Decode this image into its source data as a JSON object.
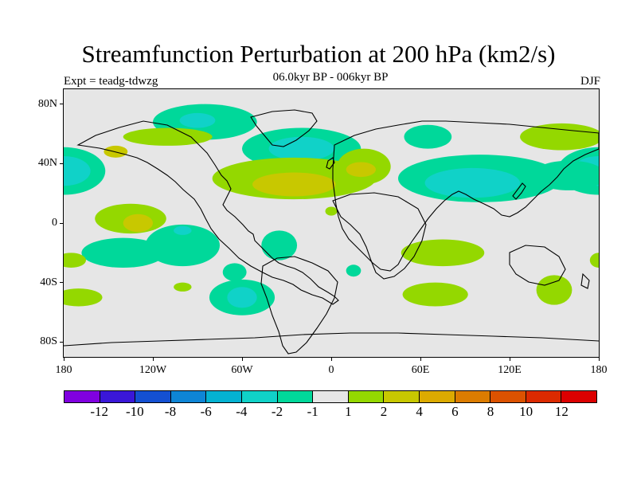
{
  "header": {
    "title": "Streamfunction Perturbation at 200 hPa (km2/s)",
    "subtitle": "06.0kyr BP - 006kyr BP",
    "experiment": "Expt = teadg-tdwzg",
    "season": "DJF"
  },
  "axes": {
    "lon_ticks": [
      "180",
      "120W",
      "60W",
      "0",
      "60E",
      "120E",
      "180"
    ],
    "lat_ticks": [
      "80N",
      "40N",
      "0",
      "40S",
      "80S"
    ]
  },
  "colorbar": {
    "colors": [
      "#8000e0",
      "#3a17d8",
      "#1450d2",
      "#0e85d6",
      "#04b2d2",
      "#10d2c8",
      "#00d89a",
      "#e6e6e6",
      "#94d800",
      "#c8c800",
      "#dcaa00",
      "#dc7c00",
      "#dc5200",
      "#dc2a00",
      "#dc0000"
    ],
    "labels": [
      "-12",
      "-10",
      "-8",
      "-6",
      "-4",
      "-2",
      "-1",
      "1",
      "2",
      "4",
      "6",
      "8",
      "10",
      "12"
    ]
  },
  "chart_data": {
    "type": "heatmap",
    "title": "Streamfunction Perturbation at 200 hPa (km2/s)",
    "subtitle": "06.0kyr BP - 006kyr BP",
    "field_colors": {
      "neg1": "#00d89a",
      "neg2": "#10d2c8",
      "pos1": "#94d800",
      "pos2": "#c8c800"
    },
    "xlim": [
      -180,
      180
    ],
    "ylim": [
      -90,
      90
    ],
    "features": [
      {
        "level": "neg1",
        "lon": -85,
        "lat": 68,
        "rlon": 35,
        "rlat": 12
      },
      {
        "level": "neg2",
        "lon": -90,
        "lat": 69,
        "rlon": 12,
        "rlat": 5
      },
      {
        "level": "neg1",
        "lon": -20,
        "lat": 50,
        "rlon": 40,
        "rlat": 14
      },
      {
        "level": "neg2",
        "lon": -20,
        "lat": 50,
        "rlon": 22,
        "rlat": 8
      },
      {
        "level": "neg1",
        "lon": 65,
        "lat": 58,
        "rlon": 16,
        "rlat": 8
      },
      {
        "level": "pos1",
        "lon": 155,
        "lat": 58,
        "rlon": 28,
        "rlat": 9
      },
      {
        "level": "pos1",
        "lon": -110,
        "lat": 58,
        "rlon": 30,
        "rlat": 6
      },
      {
        "level": "pos2",
        "lon": -145,
        "lat": 48,
        "rlon": 8,
        "rlat": 4
      },
      {
        "level": "neg1",
        "lon": -180,
        "lat": 35,
        "rlon": 28,
        "rlat": 16
      },
      {
        "level": "neg2",
        "lon": -180,
        "lat": 35,
        "rlon": 18,
        "rlat": 10
      },
      {
        "level": "neg1",
        "lon": 180,
        "lat": 35,
        "rlon": 28,
        "rlat": 16
      },
      {
        "level": "neg2",
        "lon": 180,
        "lat": 35,
        "rlon": 18,
        "rlat": 10
      },
      {
        "level": "pos1",
        "lon": -25,
        "lat": 30,
        "rlon": 55,
        "rlat": 14
      },
      {
        "level": "pos1",
        "lon": 22,
        "lat": 38,
        "rlon": 18,
        "rlat": 12
      },
      {
        "level": "pos2",
        "lon": -25,
        "lat": 26,
        "rlon": 28,
        "rlat": 8
      },
      {
        "level": "pos2",
        "lon": 20,
        "lat": 36,
        "rlon": 10,
        "rlat": 5
      },
      {
        "level": "neg1",
        "lon": 100,
        "lat": 30,
        "rlon": 55,
        "rlat": 16
      },
      {
        "level": "neg2",
        "lon": 95,
        "lat": 27,
        "rlon": 32,
        "rlat": 10
      },
      {
        "level": "neg1",
        "lon": 160,
        "lat": 32,
        "rlon": 25,
        "rlat": 10
      },
      {
        "level": "pos1",
        "lon": -135,
        "lat": 3,
        "rlon": 24,
        "rlat": 10
      },
      {
        "level": "pos2",
        "lon": -130,
        "lat": 0,
        "rlon": 10,
        "rlat": 6
      },
      {
        "level": "neg1",
        "lon": -140,
        "lat": -20,
        "rlon": 28,
        "rlat": 10
      },
      {
        "level": "neg1",
        "lon": -100,
        "lat": -15,
        "rlon": 25,
        "rlat": 14
      },
      {
        "level": "neg2",
        "lon": -100,
        "lat": -5,
        "rlon": 6,
        "rlat": 3
      },
      {
        "level": "neg1",
        "lon": -65,
        "lat": -33,
        "rlon": 8,
        "rlat": 6
      },
      {
        "level": "neg1",
        "lon": -35,
        "lat": -15,
        "rlon": 12,
        "rlat": 10
      },
      {
        "level": "neg1",
        "lon": -60,
        "lat": -50,
        "rlon": 22,
        "rlat": 12
      },
      {
        "level": "neg2",
        "lon": -60,
        "lat": -50,
        "rlon": 10,
        "rlat": 7
      },
      {
        "level": "pos1",
        "lon": -175,
        "lat": -25,
        "rlon": 10,
        "rlat": 5
      },
      {
        "level": "pos1",
        "lon": -170,
        "lat": -50,
        "rlon": 16,
        "rlat": 6
      },
      {
        "level": "pos1",
        "lon": -100,
        "lat": -43,
        "rlon": 6,
        "rlat": 3
      },
      {
        "level": "pos1",
        "lon": 75,
        "lat": -20,
        "rlon": 28,
        "rlat": 9
      },
      {
        "level": "pos1",
        "lon": 70,
        "lat": -48,
        "rlon": 22,
        "rlat": 8
      },
      {
        "level": "pos1",
        "lon": 150,
        "lat": -45,
        "rlon": 12,
        "rlat": 10
      },
      {
        "level": "pos1",
        "lon": 180,
        "lat": -25,
        "rlon": 6,
        "rlat": 5
      },
      {
        "level": "neg1",
        "lon": 15,
        "lat": -32,
        "rlon": 5,
        "rlat": 4
      },
      {
        "level": "pos1",
        "lon": 0,
        "lat": 8,
        "rlon": 4,
        "rlat": 3
      }
    ]
  }
}
